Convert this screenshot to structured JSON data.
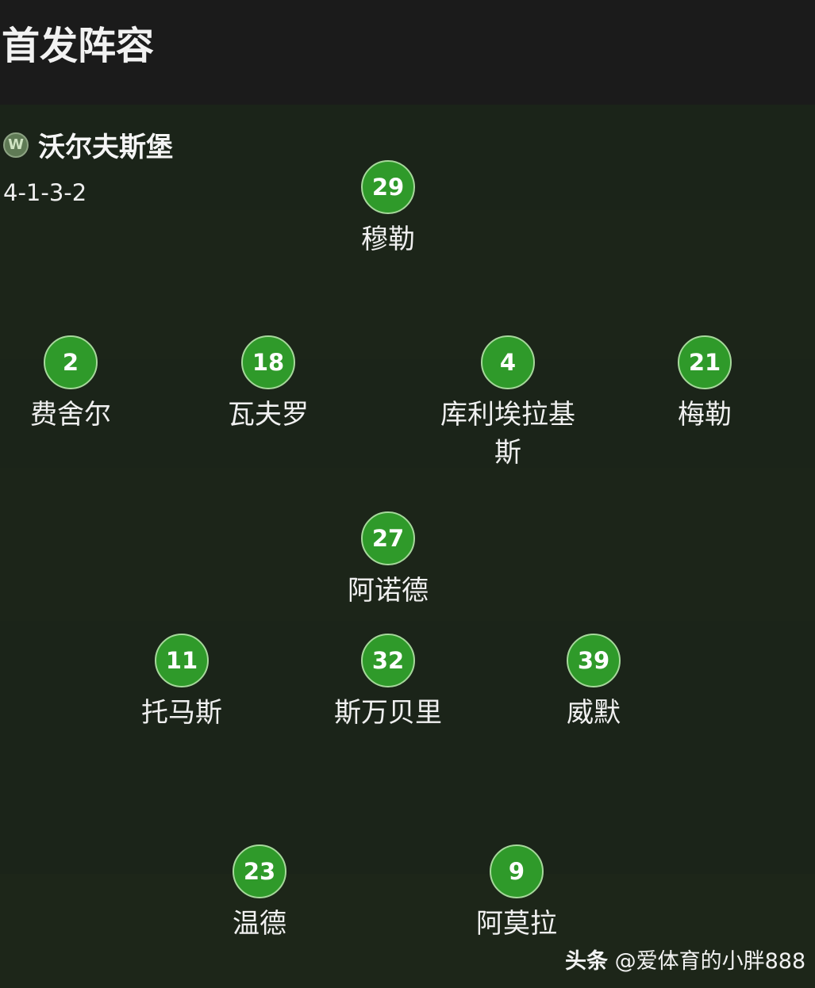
{
  "header": {
    "title": "首发阵容"
  },
  "team": {
    "name": "沃尔夫斯堡",
    "logo_letter": "W",
    "formation": "4-1-3-2"
  },
  "colors": {
    "shirt": "#2f9a2a",
    "background": "#1b2419"
  },
  "players": [
    {
      "number": "29",
      "name": "穆勒"
    },
    {
      "number": "2",
      "name": "费舍尔"
    },
    {
      "number": "18",
      "name": "瓦夫罗"
    },
    {
      "number": "4",
      "name": "库利埃拉基斯"
    },
    {
      "number": "21",
      "name": "梅勒"
    },
    {
      "number": "27",
      "name": "阿诺德"
    },
    {
      "number": "11",
      "name": "托马斯"
    },
    {
      "number": "32",
      "name": "斯万贝里"
    },
    {
      "number": "39",
      "name": "威默"
    },
    {
      "number": "23",
      "name": "温德"
    },
    {
      "number": "9",
      "name": "阿莫拉"
    }
  ],
  "watermark": {
    "brand": "头条",
    "handle": "@爱体育的小胖888"
  }
}
